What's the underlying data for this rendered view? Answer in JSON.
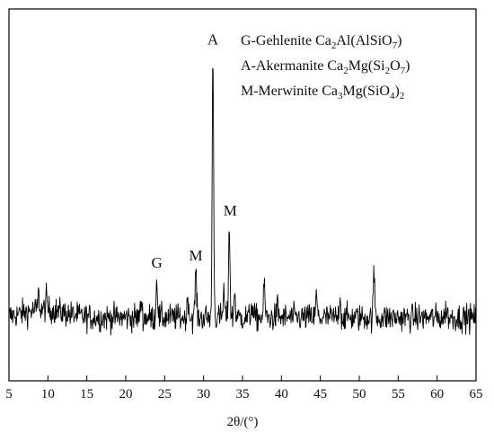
{
  "chart_data": {
    "type": "line",
    "title": "",
    "xlabel": "2θ/(°)",
    "ylabel": "",
    "xlim": [
      5,
      65
    ],
    "ylim": [
      0,
      100
    ],
    "x_ticks": [
      "5",
      "10",
      "15",
      "20",
      "25",
      "30",
      "35",
      "40",
      "45",
      "50",
      "55",
      "60",
      "65"
    ],
    "y_axis_tick_labels": false,
    "grid": false,
    "legend_position": "top-right",
    "legend_lines": [
      [
        {
          "t": "G-Gehlenite Ca"
        },
        {
          "t": "2",
          "s": "sub"
        },
        {
          "t": "Al(AlSiO"
        },
        {
          "t": "7",
          "s": "sub"
        },
        {
          "t": ")"
        }
      ],
      [
        {
          "t": "A-Akermanite Ca"
        },
        {
          "t": "2",
          "s": "sub"
        },
        {
          "t": "Mg(Si"
        },
        {
          "t": "2",
          "s": "sub"
        },
        {
          "t": "O"
        },
        {
          "t": "7",
          "s": "sub"
        },
        {
          "t": ")"
        }
      ],
      [
        {
          "t": "M-Merwinite Ca"
        },
        {
          "t": "3",
          "s": "sub"
        },
        {
          "t": "Mg(SiO"
        },
        {
          "t": "4",
          "s": "sub"
        },
        {
          "t": ")"
        },
        {
          "t": "2",
          "s": "sub"
        }
      ]
    ],
    "baseline": 17,
    "noise_amplitude": 2.6,
    "series_color": "#000000",
    "peaks": [
      {
        "x": 8.8,
        "y": 21
      },
      {
        "x": 9.8,
        "y": 20
      },
      {
        "x": 22.0,
        "y": 22
      },
      {
        "x": 24.0,
        "y": 28,
        "label": "G"
      },
      {
        "x": 28.0,
        "y": 23
      },
      {
        "x": 29.0,
        "y": 30,
        "label": "M"
      },
      {
        "x": 31.2,
        "y": 88,
        "label": "A"
      },
      {
        "x": 32.6,
        "y": 24
      },
      {
        "x": 33.3,
        "y": 42,
        "label": "M"
      },
      {
        "x": 34.0,
        "y": 24
      },
      {
        "x": 36.2,
        "y": 21
      },
      {
        "x": 37.8,
        "y": 26
      },
      {
        "x": 39.5,
        "y": 20
      },
      {
        "x": 44.5,
        "y": 23
      },
      {
        "x": 47.5,
        "y": 23
      },
      {
        "x": 51.9,
        "y": 29
      },
      {
        "x": 61.2,
        "y": 20
      }
    ]
  }
}
